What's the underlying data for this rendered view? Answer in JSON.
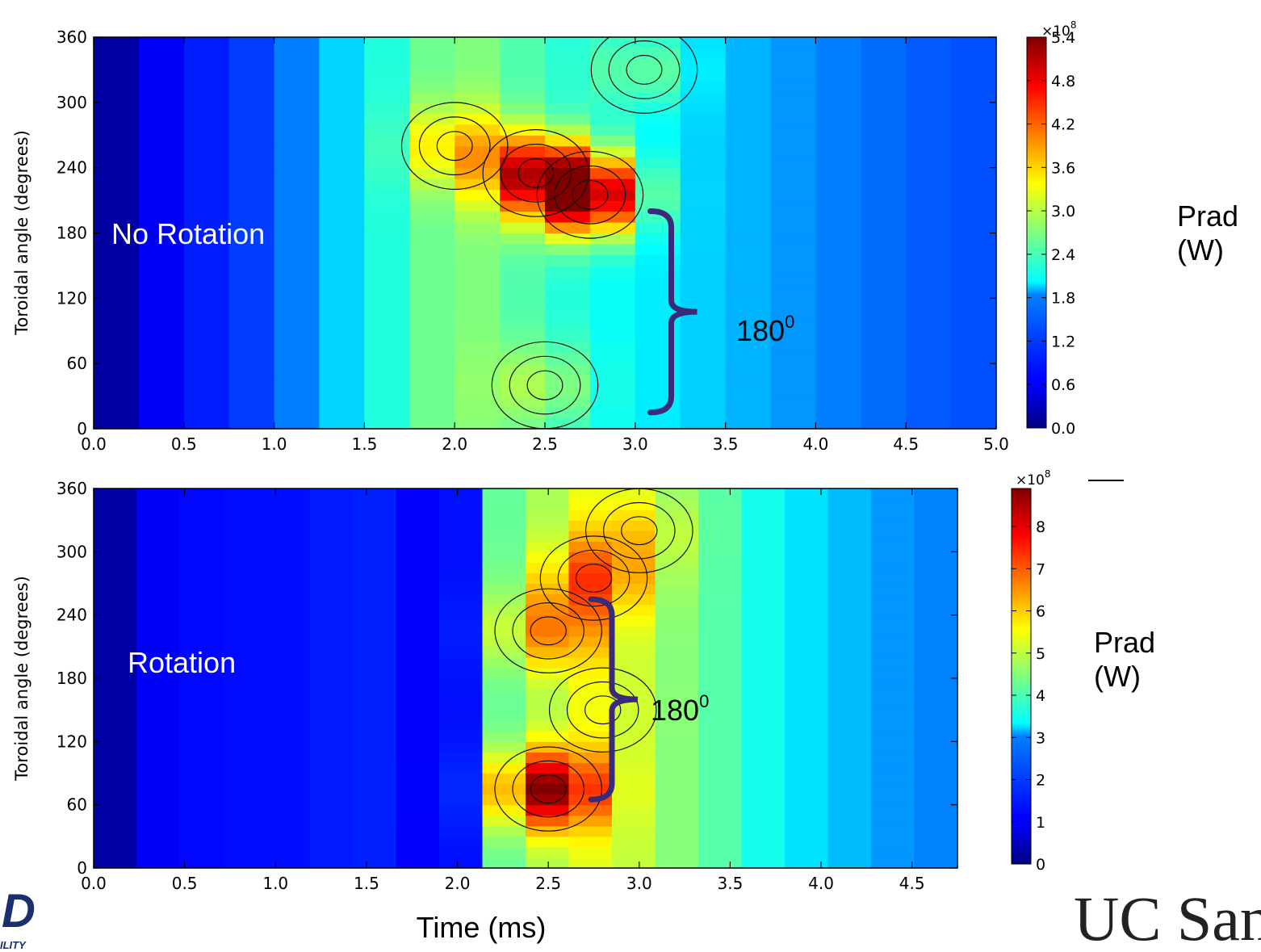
{
  "chart_data": [
    {
      "type": "heatmap",
      "panel": "top",
      "annotation": "No Rotation",
      "ylabel": "Toroidal angle (degrees)",
      "xlim": [
        0,
        5
      ],
      "ylim": [
        0,
        360
      ],
      "xticks": [
        "0.0",
        "0.5",
        "1.0",
        "1.5",
        "2.0",
        "2.5",
        "3.0",
        "3.5",
        "4.0",
        "4.5",
        "5.0"
      ],
      "yticks": [
        "0",
        "60",
        "120",
        "180",
        "240",
        "300",
        "360"
      ],
      "x_columns": [
        0.05,
        0.25,
        0.5,
        0.75,
        1.0,
        1.25,
        1.5,
        1.75,
        2.0,
        2.25,
        2.5,
        2.75,
        3.0,
        3.25,
        3.5,
        3.75,
        4.0,
        4.25,
        4.5,
        4.75
      ],
      "column_baseline": [
        0.0,
        0.5,
        0.75,
        0.9,
        1.1,
        1.6,
        2.0,
        2.4,
        2.8,
        2.6,
        2.3,
        2.1,
        2.0,
        1.85,
        1.7,
        1.55,
        1.4,
        1.3,
        1.2,
        1.1
      ],
      "hotspots": [
        {
          "t": 2.0,
          "angle": 260,
          "value": 3.8
        },
        {
          "t": 2.45,
          "angle": 235,
          "value": 4.7
        },
        {
          "t": 2.75,
          "angle": 215,
          "value": 5.4
        },
        {
          "t": 2.5,
          "angle": 40,
          "value": 2.9
        },
        {
          "t": 3.05,
          "angle": 330,
          "value": 2.6
        }
      ],
      "bracket": {
        "angle_low": 15,
        "angle_high": 200,
        "time": 3.2
      },
      "bracket_label": "180",
      "bracket_sup": "0",
      "colorbar": {
        "range": [
          0,
          5.4
        ],
        "ticks": [
          "0.0",
          "0.6",
          "1.2",
          "1.8",
          "2.4",
          "3.0",
          "3.6",
          "4.2",
          "4.8",
          "5.4"
        ],
        "multiplier": "×10",
        "exponent": "8",
        "label_line1": "Prad",
        "label_line2": "(W)"
      }
    },
    {
      "type": "heatmap",
      "panel": "bottom",
      "annotation": "Rotation",
      "ylabel": "Toroidal angle (degrees)",
      "xlabel": "Time (ms)",
      "xlim": [
        0,
        4.75
      ],
      "ylim": [
        0,
        360
      ],
      "xticks": [
        "0.0",
        "0.5",
        "1.0",
        "1.5",
        "2.0",
        "2.5",
        "3.0",
        "3.5",
        "4.0",
        "4.5"
      ],
      "yticks": [
        "0",
        "60",
        "120",
        "180",
        "240",
        "300",
        "360"
      ],
      "x_columns": [
        0.05,
        0.25,
        0.5,
        0.75,
        1.0,
        1.25,
        1.5,
        1.75,
        2.0,
        2.25,
        2.5,
        2.75,
        3.0,
        3.25,
        3.5,
        3.75,
        4.0,
        4.25,
        4.5,
        4.75
      ],
      "column_baseline": [
        0.0,
        1.0,
        1.15,
        1.2,
        1.2,
        1.3,
        1.45,
        1.1,
        1.0,
        4.2,
        4.8,
        5.3,
        5.0,
        4.4,
        4.0,
        3.3,
        3.0,
        2.6,
        2.3,
        2.2
      ],
      "hotspots": [
        {
          "t": 2.5,
          "angle": 75,
          "value": 8.9
        },
        {
          "t": 2.75,
          "angle": 275,
          "value": 7.2
        },
        {
          "t": 2.5,
          "angle": 225,
          "value": 6.6
        },
        {
          "t": 3.0,
          "angle": 320,
          "value": 5.8
        },
        {
          "t": 2.8,
          "angle": 150,
          "value": 5.4
        }
      ],
      "bracket": {
        "angle_low": 65,
        "angle_high": 255,
        "time": 2.85
      },
      "bracket_label": "180",
      "bracket_sup": "0",
      "colorbar": {
        "range": [
          0,
          8.9
        ],
        "ticks": [
          "0",
          "1",
          "2",
          "3",
          "4",
          "5",
          "6",
          "7",
          "8"
        ],
        "multiplier": "×10",
        "exponent": "8",
        "label_line1": "Prad",
        "label_line2": "(W)"
      }
    }
  ],
  "footer": {
    "right_logo_text": "UC San Di",
    "left_logo_letter": "D",
    "left_logo_sub": "ILITY"
  }
}
